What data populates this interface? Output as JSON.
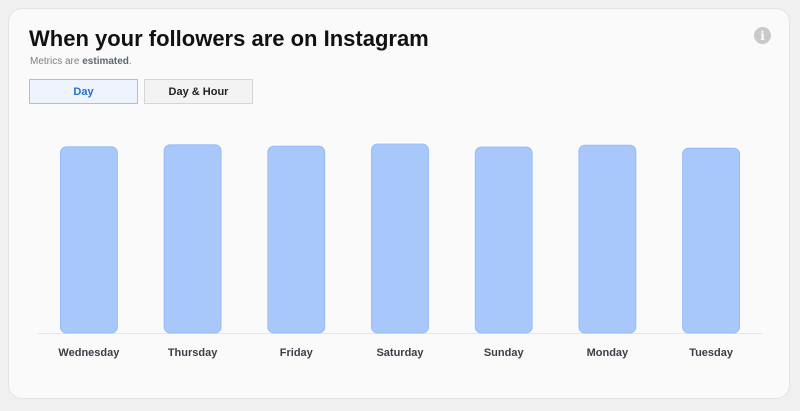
{
  "header": {
    "title": "When your followers are on Instagram",
    "subtitle_prefix": "Metrics are ",
    "subtitle_bold": "estimated",
    "subtitle_suffix": ".",
    "info_glyph": "i"
  },
  "tabs": [
    {
      "label": "Day",
      "selected": true
    },
    {
      "label": "Day & Hour",
      "selected": false
    }
  ],
  "colors": {
    "bar_fill": "#a8c8fc",
    "bar_stroke": "#8fb6f7",
    "accent": "#2a6fc9"
  },
  "chart_data": {
    "type": "bar",
    "categories": [
      "Wednesday",
      "Thursday",
      "Friday",
      "Saturday",
      "Sunday",
      "Monday",
      "Tuesday"
    ],
    "values": [
      98.5,
      99.6,
      98.9,
      100,
      98.4,
      99.4,
      97.8
    ],
    "ylim": [
      0,
      100
    ],
    "grid": false,
    "legend": "none"
  }
}
